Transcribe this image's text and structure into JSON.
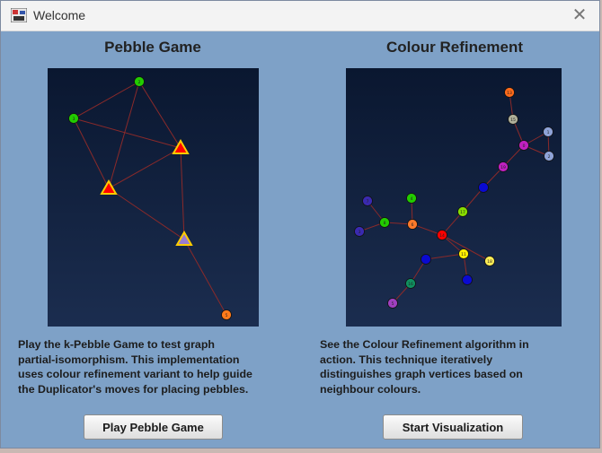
{
  "window": {
    "title": "Welcome",
    "close_glyph": "✕"
  },
  "pebble": {
    "title": "Pebble Game",
    "description": [
      "Play the k-Pebble Game to test graph",
      "partial-isomorphism. This implementation",
      "uses colour refinement variant to help guide",
      "the Duplicator's moves for placing pebbles."
    ],
    "button_label": "Play Pebble Game",
    "graph": {
      "nodes": [
        {
          "label": "2",
          "color": "#22cc00",
          "shape": "circle"
        },
        {
          "label": "3",
          "color": "#22cc00",
          "shape": "circle"
        },
        {
          "label": "",
          "color": "#ff0000",
          "shape": "triangle",
          "border": "#ffcc00"
        },
        {
          "label": "",
          "color": "#ff0000",
          "shape": "triangle",
          "border": "#ffcc00"
        },
        {
          "label": "",
          "color": "#9a7bd0",
          "shape": "triangle",
          "border": "#ffcc00"
        },
        {
          "label": "5",
          "color": "#ff7a1a",
          "shape": "circle"
        }
      ]
    }
  },
  "refinement": {
    "title": "Colour Refinement",
    "description": [
      "See the Colour Refinement algorithm in",
      "action. This technique iteratively",
      "distinguishes graph vertices based on",
      "neighbour colours."
    ],
    "button_label": "Start Visualization",
    "graph": {
      "nodes": [
        {
          "label": "13",
          "color": "#ff6a1a"
        },
        {
          "label": "15",
          "color": "#b0b09a"
        },
        {
          "label": "1",
          "color": "#8fa3d8"
        },
        {
          "label": "0",
          "color": "#c020c0"
        },
        {
          "label": "2",
          "color": "#8fa3d8"
        },
        {
          "label": "19",
          "color": "#c020c0"
        },
        {
          "label": "",
          "color": "#0a0ad0"
        },
        {
          "label": "17",
          "color": "#88dd00"
        },
        {
          "label": "4",
          "color": "#22cc00"
        },
        {
          "label": "7",
          "color": "#3a2ab0"
        },
        {
          "label": "8",
          "color": "#22cc00"
        },
        {
          "label": "6",
          "color": "#ff7a2a"
        },
        {
          "label": "3",
          "color": "#3a2ab0"
        },
        {
          "label": "14",
          "color": "#ff0000"
        },
        {
          "label": "11",
          "color": "#ffee00"
        },
        {
          "label": "",
          "color": "#0a0ad0"
        },
        {
          "label": "18",
          "color": "#ffee55"
        },
        {
          "label": "",
          "color": "#0a0ad0"
        },
        {
          "label": "16",
          "color": "#109060"
        },
        {
          "label": "5",
          "color": "#a040c0"
        }
      ]
    }
  }
}
